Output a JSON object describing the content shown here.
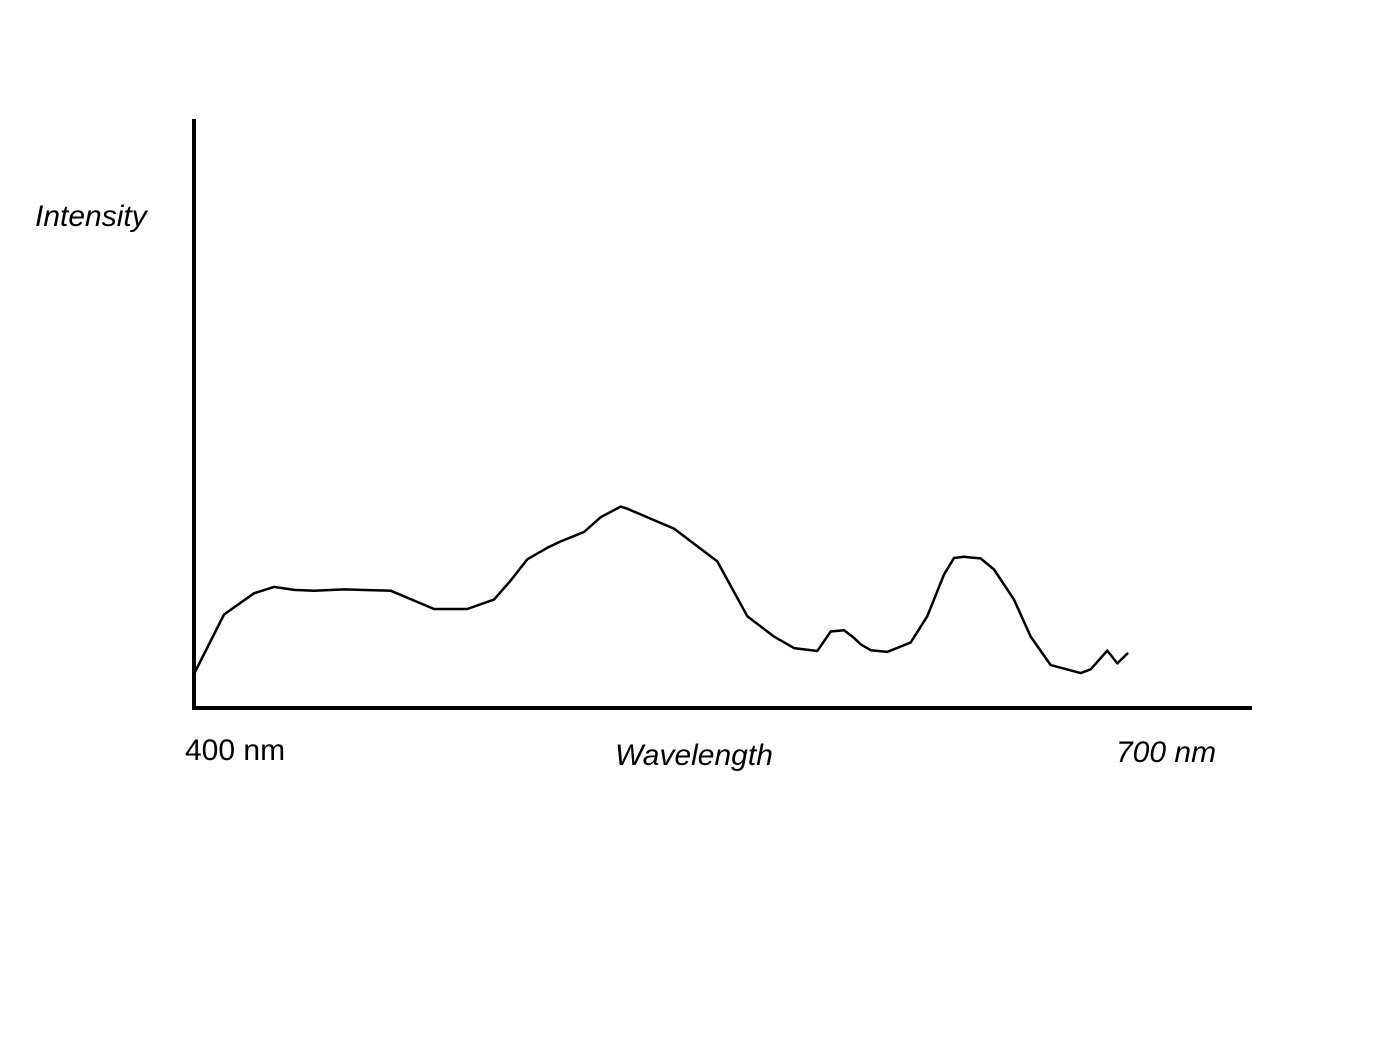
{
  "chart_data": {
    "type": "line",
    "title": "",
    "xlabel": "Wavelength",
    "ylabel": "Intensity",
    "x_tick_labels": [
      "400 nm",
      "700 nm"
    ],
    "xlim": [
      400,
      700
    ],
    "ylim": [
      0,
      100
    ],
    "grid": false,
    "legend": "none",
    "line_color": "#000000",
    "series": [
      {
        "x": [
          400,
          409,
          418,
          424,
          430,
          436,
          445,
          459,
          472,
          482,
          490,
          495,
          500,
          506,
          510,
          517,
          522,
          528,
          530,
          532,
          538,
          544,
          557,
          566,
          574,
          580,
          587,
          591,
          595,
          598,
          600,
          603,
          608,
          615,
          620,
          625,
          628,
          631,
          633,
          636,
          640,
          646,
          651,
          657,
          666,
          669,
          674,
          677,
          680
        ],
        "y": [
          8,
          22,
          27,
          28.5,
          27.8,
          27.6,
          27.9,
          27.6,
          23.3,
          23.3,
          25.5,
          30,
          35,
          37.7,
          39.2,
          41.4,
          44.9,
          47.4,
          46.9,
          46.2,
          44.2,
          42.2,
          34.5,
          21.6,
          16.8,
          14.1,
          13.4,
          18.0,
          18.3,
          16.5,
          15,
          13.6,
          13.2,
          15.4,
          21.6,
          31.4,
          35.3,
          35.6,
          35.4,
          35.2,
          32.6,
          25.5,
          16.8,
          10.1,
          8.2,
          9.1,
          13.5,
          10.5,
          12.8
        ]
      }
    ]
  }
}
